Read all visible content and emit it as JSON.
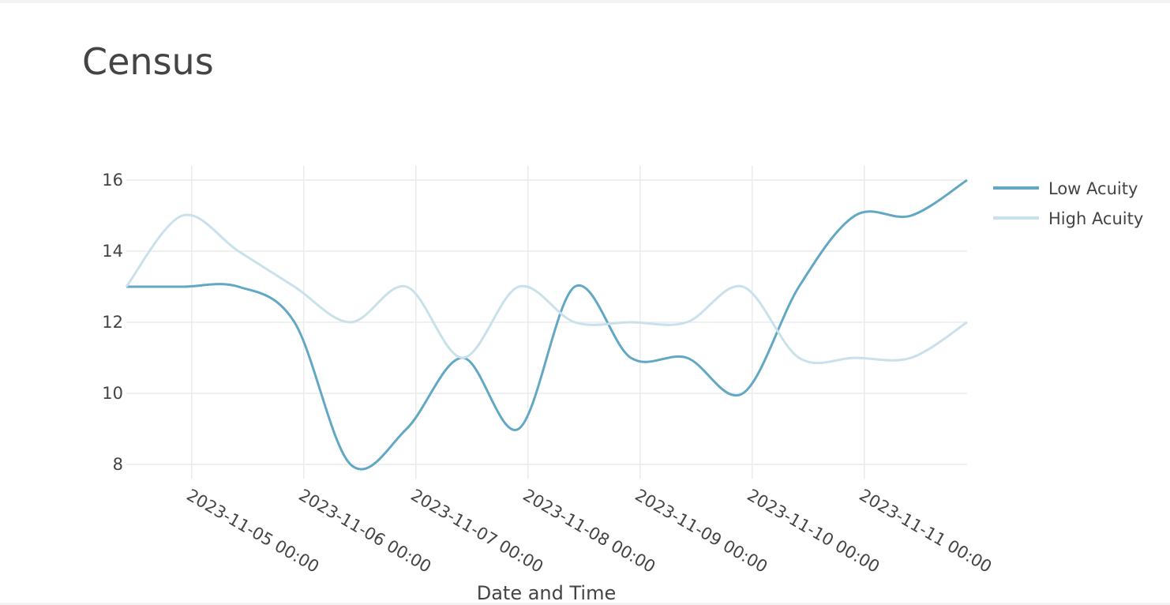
{
  "chart_data": {
    "type": "line",
    "title": "Census",
    "xlabel": "Date and Time",
    "x": [
      "2023-11-04 10:00",
      "2023-11-04 22:00",
      "2023-11-05 10:00",
      "2023-11-05 22:00",
      "2023-11-06 10:00",
      "2023-11-06 22:00",
      "2023-11-07 10:00",
      "2023-11-07 22:00",
      "2023-11-08 10:00",
      "2023-11-08 22:00",
      "2023-11-09 10:00",
      "2023-11-09 22:00",
      "2023-11-10 10:00",
      "2023-11-10 22:00",
      "2023-11-11 10:00",
      "2023-11-11 22:00"
    ],
    "series": [
      {
        "name": "Low Acuity",
        "color": "#62a8c4",
        "values": [
          13,
          13,
          13,
          12,
          8,
          9,
          11,
          9,
          13,
          11,
          11,
          10,
          13,
          15,
          15,
          16
        ]
      },
      {
        "name": "High Acuity",
        "color": "#c9e1ea",
        "values": [
          13,
          15,
          14,
          13,
          12,
          13,
          11,
          13,
          12,
          12,
          12,
          13,
          11,
          11,
          11,
          12
        ]
      }
    ],
    "xlim": [
      "2023-11-04 10:00",
      "2023-11-11 22:00"
    ],
    "xticks": [
      "2023-11-05 00:00",
      "2023-11-06 00:00",
      "2023-11-07 00:00",
      "2023-11-08 00:00",
      "2023-11-09 00:00",
      "2023-11-10 00:00",
      "2023-11-11 00:00"
    ],
    "ylim": [
      7.6,
      16.4
    ],
    "yticks": [
      8,
      10,
      12,
      14,
      16
    ],
    "grid": true,
    "smooth": true,
    "legend": "top-right"
  }
}
